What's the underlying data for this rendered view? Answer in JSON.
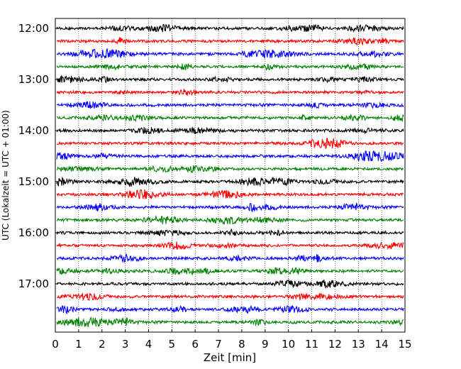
{
  "chart_data": {
    "type": "line",
    "title": "",
    "xlabel": "Zeit  [min]",
    "ylabel": "UTC (Lokalzeit = UTC + 01:00)",
    "xlim": [
      0,
      15
    ],
    "x_ticks": [
      "0",
      "1",
      "2",
      "3",
      "4",
      "5",
      "6",
      "7",
      "8",
      "9",
      "10",
      "11",
      "12",
      "13",
      "14",
      "15"
    ],
    "y_ticks": [
      "12:00",
      "13:00",
      "14:00",
      "15:00",
      "16:00",
      "17:00"
    ],
    "grid": "vertical dotted",
    "legend": "none",
    "trace_colors": [
      "#000000",
      "#ff0000",
      "#0000ff",
      "#008000"
    ],
    "trace_starts": [
      "12:00",
      "12:15",
      "12:30",
      "12:45",
      "13:00",
      "13:15",
      "13:30",
      "13:45",
      "14:00",
      "14:15",
      "14:30",
      "14:45",
      "15:00",
      "15:15",
      "15:30",
      "15:45",
      "16:00",
      "16:15",
      "16:30",
      "16:45",
      "17:00",
      "17:15",
      "17:30",
      "17:45"
    ]
  }
}
